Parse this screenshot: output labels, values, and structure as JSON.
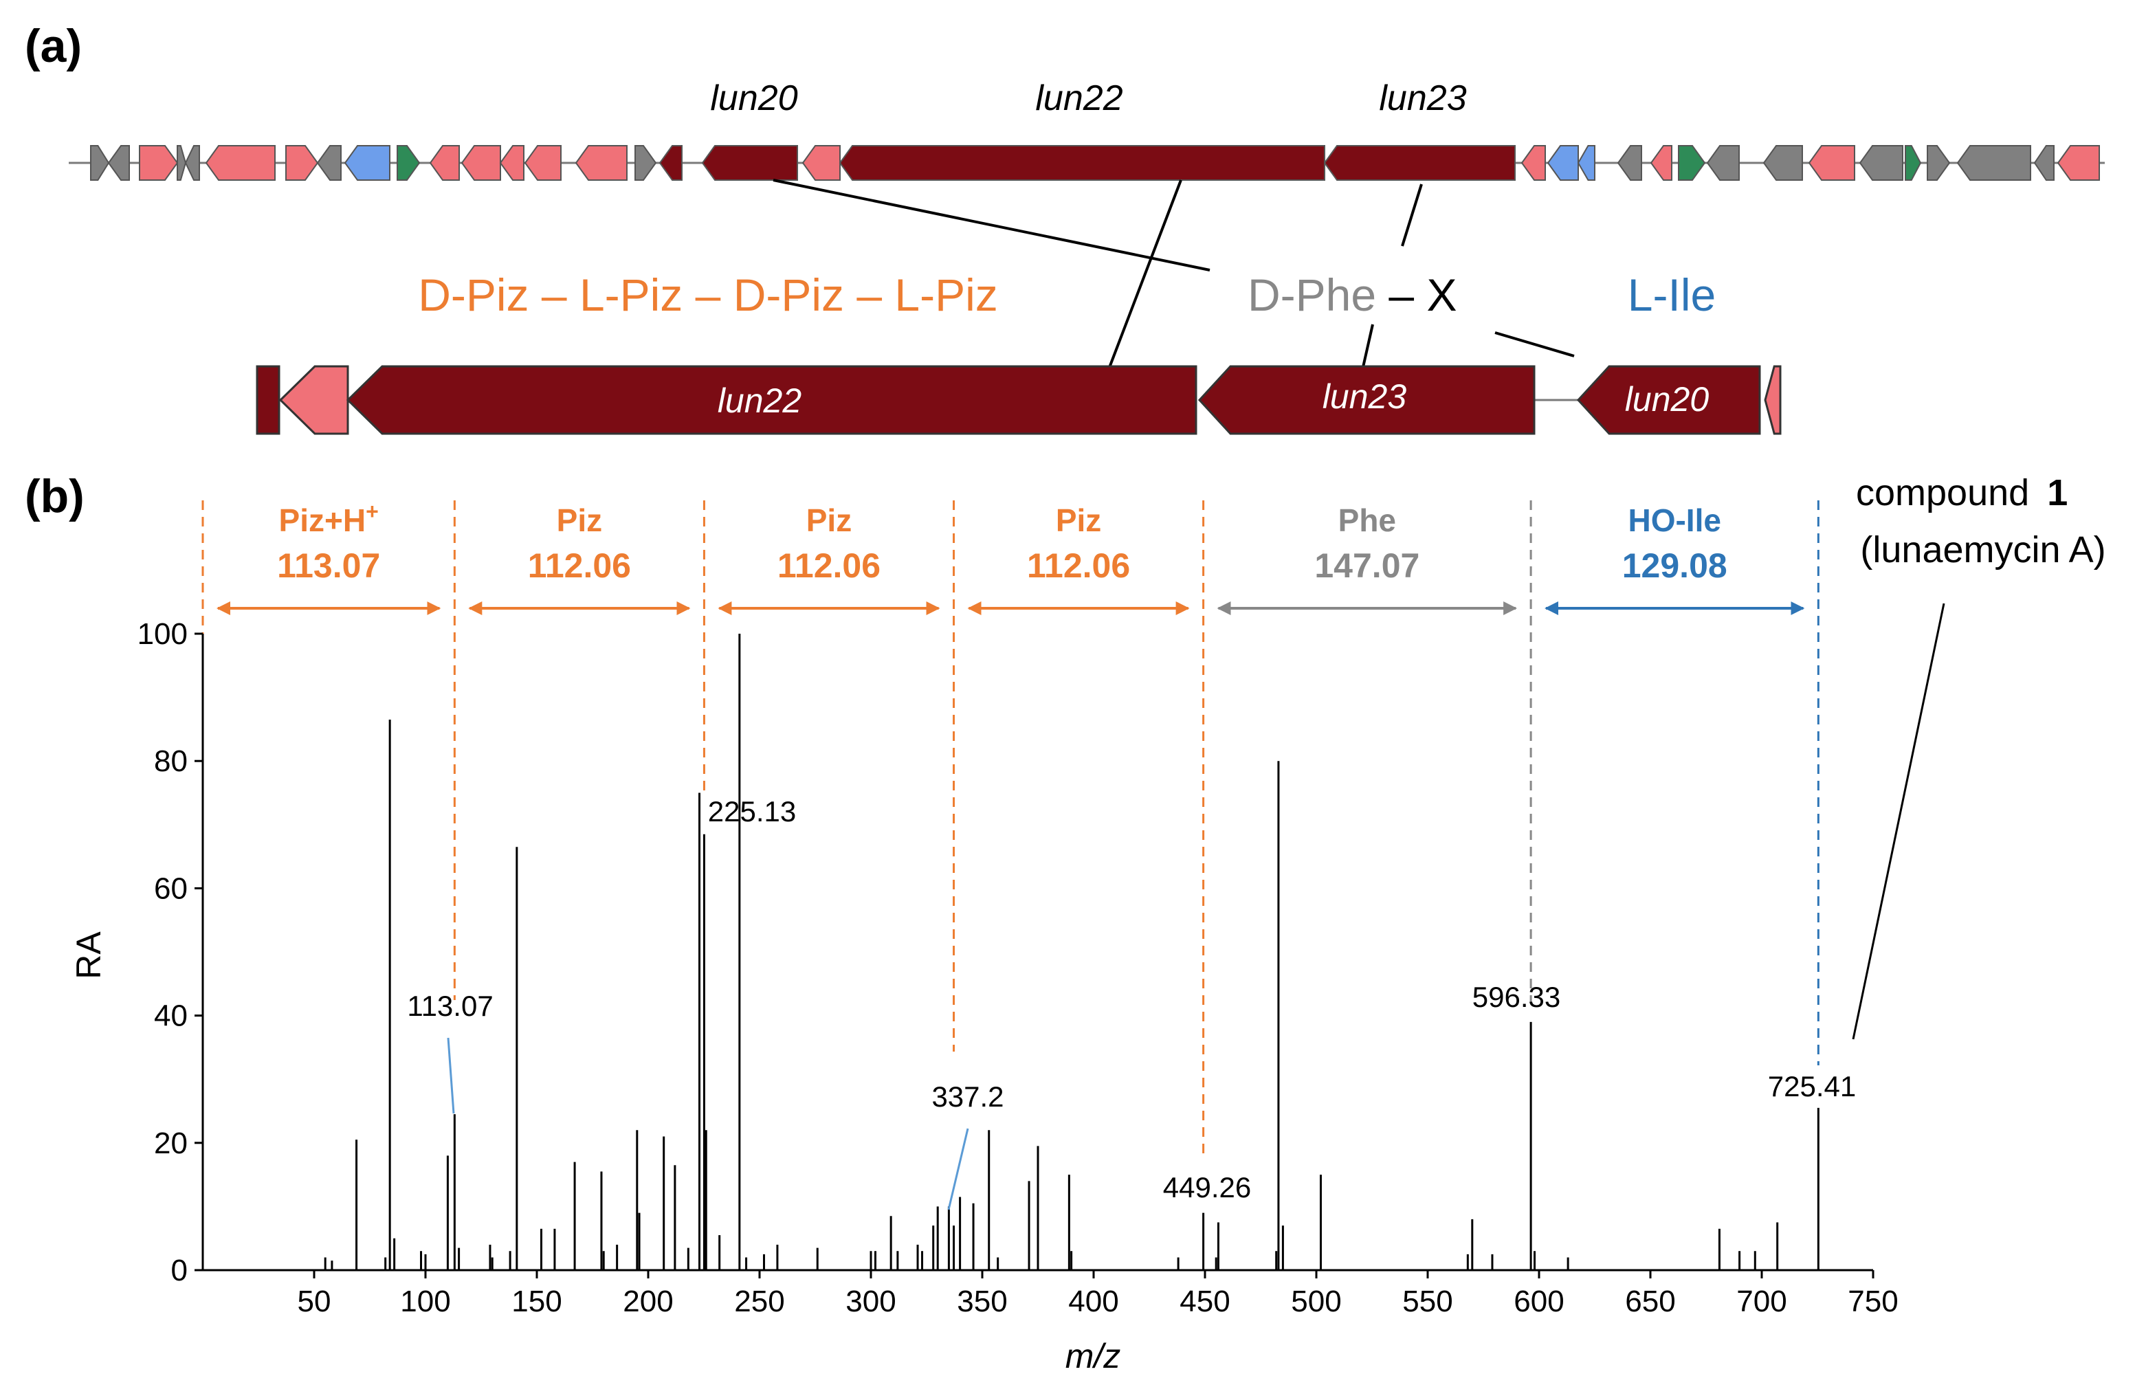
{
  "panel_a": {
    "label": "(a)",
    "gene_labels_top": [
      "lun20",
      "lun22",
      "lun23"
    ],
    "gene_labels_bottom": [
      "lun22",
      "lun23",
      "lun20"
    ],
    "residues": {
      "piz_chain": "D-Piz – L-Piz – D-Piz – L-Piz",
      "phe": "D-Phe",
      "dash": " – ",
      "x": "X",
      "ile": "L-Ile"
    }
  },
  "panel_b": {
    "label": "(b)",
    "compound_label_line1": "compound",
    "compound_number": "1",
    "compound_label_line2": "(lunaemycin A)"
  },
  "colors": {
    "piz": "#ED7D31",
    "phe": "#888888",
    "ile": "#2E75B6",
    "nrps": "#7B0C14",
    "pink": "#F07178",
    "blue": "#6D9EEB",
    "green": "#2E8B57",
    "gray": "#808080"
  },
  "chart_data": {
    "type": "bar",
    "xlabel": "m/z",
    "ylabel": "RA",
    "xlim": [
      0,
      750
    ],
    "ylim": [
      0,
      100
    ],
    "xticks": [
      50,
      100,
      150,
      200,
      250,
      300,
      350,
      400,
      450,
      500,
      550,
      600,
      650,
      700,
      750
    ],
    "yticks": [
      0,
      20,
      40,
      60,
      80,
      100
    ],
    "peaks": [
      [
        55,
        2
      ],
      [
        58,
        1.5
      ],
      [
        69,
        20.5
      ],
      [
        82,
        2
      ],
      [
        84,
        86.5
      ],
      [
        86,
        5
      ],
      [
        98,
        3
      ],
      [
        100,
        2.5
      ],
      [
        110,
        18
      ],
      [
        113.07,
        24.5
      ],
      [
        115,
        3.5
      ],
      [
        129,
        4
      ],
      [
        130,
        2
      ],
      [
        138,
        3
      ],
      [
        141,
        66.5
      ],
      [
        152,
        6.5
      ],
      [
        158,
        6.5
      ],
      [
        167,
        17
      ],
      [
        179,
        15.5
      ],
      [
        180,
        3
      ],
      [
        186,
        4
      ],
      [
        195,
        22
      ],
      [
        196,
        9
      ],
      [
        207,
        21
      ],
      [
        212,
        16.5
      ],
      [
        218,
        3.5
      ],
      [
        223,
        75
      ],
      [
        225.13,
        68.5
      ],
      [
        226,
        22
      ],
      [
        232,
        5.5
      ],
      [
        241,
        100
      ],
      [
        244,
        2
      ],
      [
        252,
        2.5
      ],
      [
        258,
        4
      ],
      [
        276,
        3.5
      ],
      [
        300,
        3
      ],
      [
        302,
        3
      ],
      [
        309,
        8.5
      ],
      [
        312,
        3
      ],
      [
        321,
        4
      ],
      [
        323,
        3
      ],
      [
        328,
        7
      ],
      [
        330,
        10
      ],
      [
        335,
        10
      ],
      [
        337.2,
        7
      ],
      [
        340,
        11.5
      ],
      [
        346,
        10.5
      ],
      [
        353,
        22
      ],
      [
        357,
        2
      ],
      [
        371,
        14
      ],
      [
        375,
        19.5
      ],
      [
        389,
        15
      ],
      [
        390,
        3
      ],
      [
        438,
        2
      ],
      [
        449.26,
        9
      ],
      [
        455,
        2
      ],
      [
        456,
        7.5
      ],
      [
        482,
        3
      ],
      [
        483,
        80
      ],
      [
        485,
        7
      ],
      [
        502,
        15
      ],
      [
        568,
        2.5
      ],
      [
        570,
        8
      ],
      [
        579,
        2.5
      ],
      [
        596.33,
        39
      ],
      [
        598,
        3
      ],
      [
        613,
        2
      ],
      [
        681,
        6.5
      ],
      [
        690,
        3
      ],
      [
        697,
        3
      ],
      [
        707,
        7.5
      ],
      [
        725.41,
        25.5
      ]
    ],
    "peak_labels": [
      {
        "mz": 113.07,
        "text": "113.07"
      },
      {
        "mz": 225.13,
        "text": "225.13"
      },
      {
        "mz": 337.2,
        "text": "337.2"
      },
      {
        "mz": 449.26,
        "text": "449.26"
      },
      {
        "mz": 596.33,
        "text": "596.33"
      },
      {
        "mz": 725.41,
        "text": "725.41"
      }
    ],
    "fragment_lines": [
      {
        "mz": 0,
        "color": "piz"
      },
      {
        "mz": 113.07,
        "color": "piz"
      },
      {
        "mz": 225.13,
        "color": "piz"
      },
      {
        "mz": 337.2,
        "color": "piz"
      },
      {
        "mz": 449.26,
        "color": "piz"
      },
      {
        "mz": 596.33,
        "color": "phe"
      },
      {
        "mz": 725.41,
        "color": "ile"
      }
    ],
    "annotations": [
      {
        "name": "Piz+H+",
        "sup": "+",
        "mass": "113.07",
        "from": 0,
        "to": 113.07,
        "color": "piz"
      },
      {
        "name": "Piz",
        "sup": "",
        "mass": "112.06",
        "from": 113.07,
        "to": 225.13,
        "color": "piz"
      },
      {
        "name": "Piz",
        "sup": "",
        "mass": "112.06",
        "from": 225.13,
        "to": 337.2,
        "color": "piz"
      },
      {
        "name": "Piz",
        "sup": "",
        "mass": "112.06",
        "from": 337.2,
        "to": 449.26,
        "color": "piz"
      },
      {
        "name": "Phe",
        "sup": "",
        "mass": "147.07",
        "from": 449.26,
        "to": 596.33,
        "color": "phe"
      },
      {
        "name": "HO-Ile",
        "sup": "",
        "mass": "129.08",
        "from": 596.33,
        "to": 725.41,
        "color": "ile"
      }
    ]
  }
}
